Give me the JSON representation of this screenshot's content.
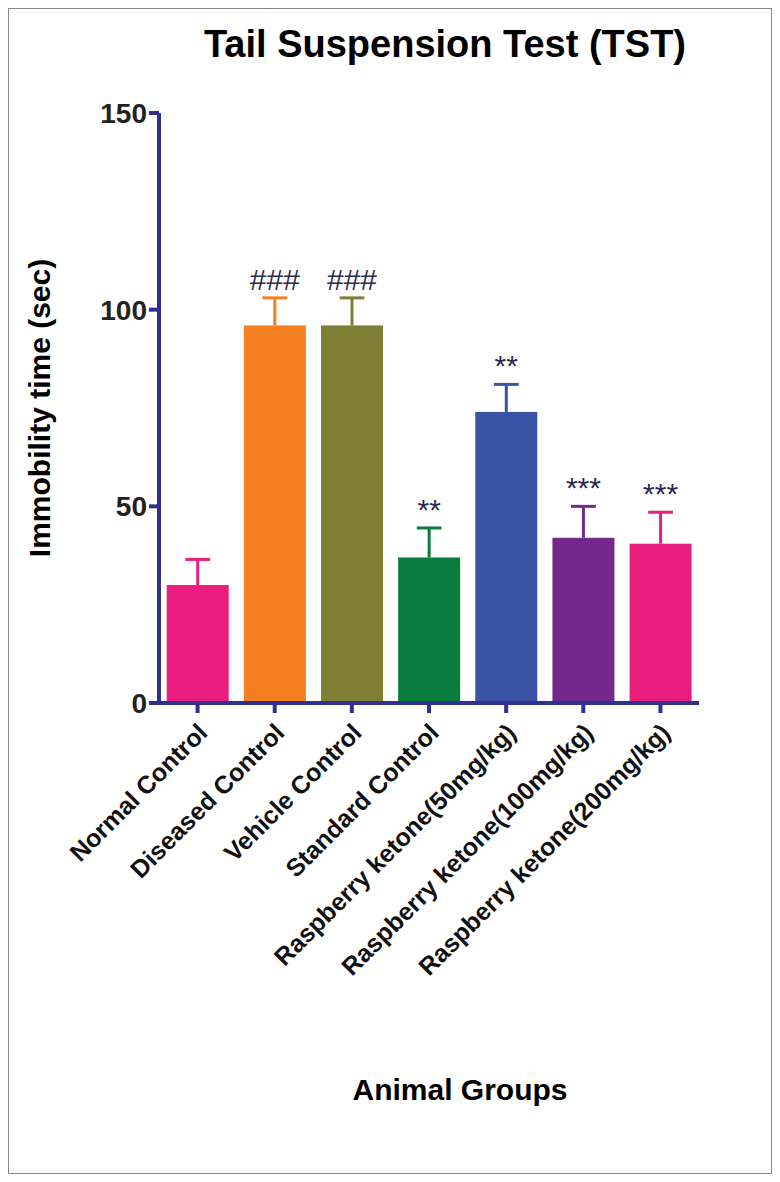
{
  "chart_data": {
    "type": "bar",
    "title": "Tail Suspension Test (TST)",
    "x_label": "Animal Groups",
    "y_label": "Immobility time (sec)",
    "categories": [
      "Normal Control",
      "Diseased Control",
      "Vehicle Control",
      "Standard Control",
      "Raspberry ketone(50mg/kg)",
      "Raspberry ketone(100mg/kg)",
      "Raspberry ketone(200mg/kg)"
    ],
    "values": [
      30,
      96,
      96,
      37,
      74,
      42,
      40.5
    ],
    "errors": [
      6.5,
      7,
      7,
      7.5,
      7,
      8,
      8
    ],
    "annotations": [
      null,
      "###",
      "###",
      "**",
      "**",
      "***",
      "***"
    ],
    "colors": [
      "#e91e7f",
      "#f47f20",
      "#7f8035",
      "#0a7c3e",
      "#3a53a4",
      "#73298b",
      "#e91e7f"
    ],
    "ylim": [
      0,
      150
    ],
    "yticks": [
      0,
      50,
      100,
      150
    ],
    "grid": false
  }
}
